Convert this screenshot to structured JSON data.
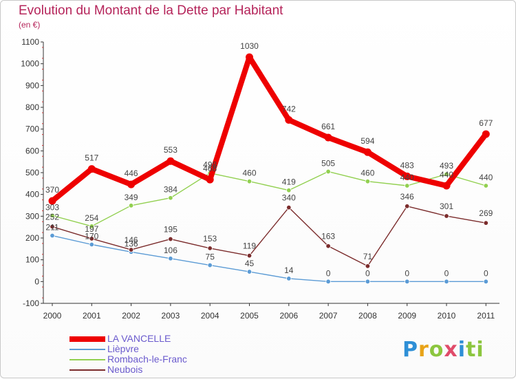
{
  "header": {
    "title": "Evolution du Montant de la Dette par Habitant",
    "subtitle": "(en €)"
  },
  "logo": {
    "text": "Proxiti",
    "letters": [
      "P",
      "r",
      "o",
      "x",
      "i",
      "ti"
    ]
  },
  "chart_data": {
    "type": "line",
    "title": "Evolution du Montant de la Dette par Habitant",
    "subtitle": "(en €)",
    "xlabel": "",
    "ylabel": "",
    "x": [
      "2000",
      "2001",
      "2002",
      "2003",
      "2004",
      "2005",
      "2006",
      "2007",
      "2008",
      "2009",
      "2010",
      "2011"
    ],
    "ylim": [
      -100,
      1100
    ],
    "yticks": [
      -100,
      0,
      100,
      200,
      300,
      400,
      500,
      600,
      700,
      800,
      900,
      1000,
      1100
    ],
    "grid": false,
    "legend_position": "bottom-left",
    "series": [
      {
        "name": "LA VANCELLE",
        "color": "#ee0000",
        "values": [
          370,
          517,
          446,
          553,
          468,
          1030,
          742,
          661,
          594,
          483,
          440,
          677
        ],
        "labels": [
          "370",
          "517",
          "446",
          "553",
          "468",
          "1030",
          "742",
          "661",
          "594",
          "483",
          "440",
          "677"
        ]
      },
      {
        "name": "Lièpvre",
        "color": "#5b9bd5",
        "values": [
          211,
          170,
          136,
          106,
          75,
          45,
          14,
          0,
          0,
          0,
          0,
          0
        ],
        "labels": [
          "211",
          "170",
          "136",
          "106",
          "75",
          "45",
          "14",
          "0",
          "0",
          "0",
          "0",
          "0"
        ]
      },
      {
        "name": "Rombach-le-Franc",
        "color": "#92d050",
        "values": [
          303,
          254,
          349,
          384,
          498,
          460,
          419,
          505,
          460,
          440,
          493,
          440
        ],
        "labels": [
          "303",
          "254",
          "349",
          "384",
          "498",
          "460",
          "419",
          "505",
          "460",
          "440",
          "493",
          "440"
        ]
      },
      {
        "name": "Neubois",
        "color": "#7b2c2c",
        "values": [
          252,
          197,
          146,
          195,
          153,
          119,
          340,
          163,
          71,
          346,
          301,
          269
        ],
        "labels": [
          "252",
          "197",
          "146",
          "195",
          "153",
          "119",
          "340",
          "163",
          "71",
          "346",
          "301",
          "269"
        ]
      }
    ]
  }
}
